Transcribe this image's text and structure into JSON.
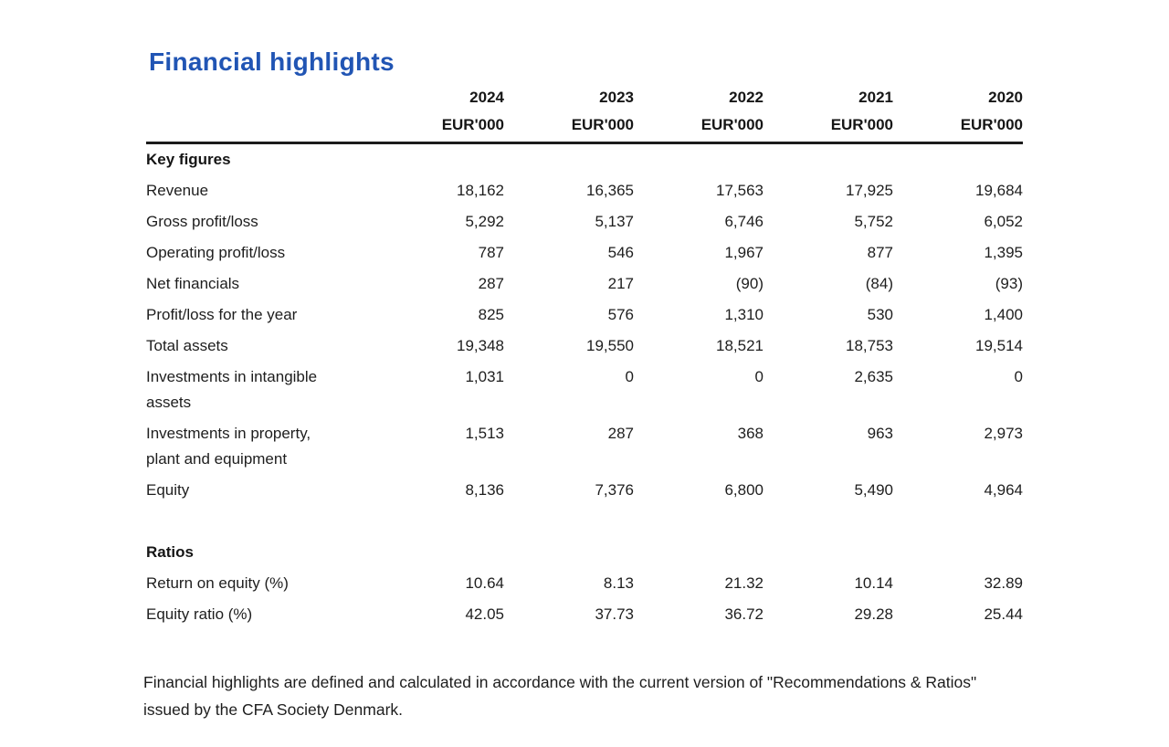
{
  "page": {
    "title": "Financial highlights",
    "title_color": "#2155b4",
    "background_color": "#ffffff",
    "text_color": "#1e1e1e"
  },
  "table": {
    "unit_label": "EUR'000",
    "years": [
      "2024",
      "2023",
      "2022",
      "2021",
      "2020"
    ],
    "sections": [
      {
        "label": "Key figures",
        "rows": [
          {
            "label": "Revenue",
            "values": [
              "18,162",
              "16,365",
              "17,563",
              "17,925",
              "19,684"
            ]
          },
          {
            "label": "Gross profit/loss",
            "values": [
              "5,292",
              "5,137",
              "6,746",
              "5,752",
              "6,052"
            ]
          },
          {
            "label": "Operating profit/loss",
            "values": [
              "787",
              "546",
              "1,967",
              "877",
              "1,395"
            ]
          },
          {
            "label": "Net financials",
            "values": [
              "287",
              "217",
              "(90)",
              "(84)",
              "(93)"
            ]
          },
          {
            "label": "Profit/loss for the year",
            "values": [
              "825",
              "576",
              "1,310",
              "530",
              "1,400"
            ]
          },
          {
            "label": "Total assets",
            "values": [
              "19,348",
              "19,550",
              "18,521",
              "18,753",
              "19,514"
            ]
          },
          {
            "label": "Investments in intangible assets",
            "values": [
              "1,031",
              "0",
              "0",
              "2,635",
              "0"
            ]
          },
          {
            "label": "Investments in property, plant and equipment",
            "values": [
              "1,513",
              "287",
              "368",
              "963",
              "2,973"
            ]
          },
          {
            "label": "Equity",
            "values": [
              "8,136",
              "7,376",
              "6,800",
              "5,490",
              "4,964"
            ]
          }
        ]
      },
      {
        "label": "Ratios",
        "rows": [
          {
            "label": "Return on equity (%)",
            "values": [
              "10.64",
              "8.13",
              "21.32",
              "10.14",
              "32.89"
            ]
          },
          {
            "label": "Equity ratio (%)",
            "values": [
              "42.05",
              "37.73",
              "36.72",
              "29.28",
              "25.44"
            ]
          }
        ]
      }
    ]
  },
  "footer": {
    "text": "Financial highlights are defined and calculated in accordance with the current version of \"Recommendations & Ratios\" issued by the CFA Society Denmark."
  }
}
